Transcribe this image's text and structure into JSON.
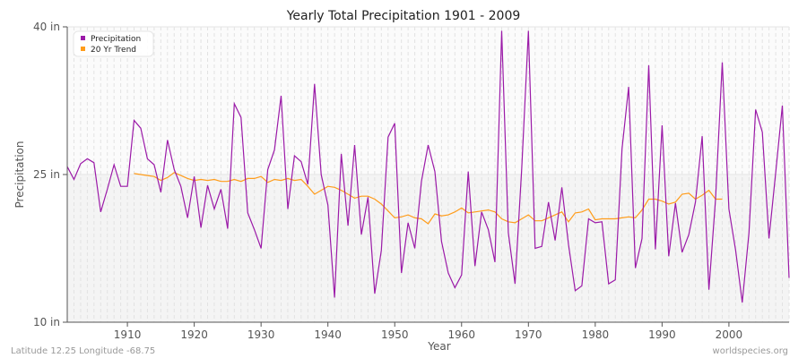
{
  "chart_data": {
    "type": "line",
    "title": "Yearly Total Precipitation 1901 - 2009",
    "xlabel": "Year",
    "ylabel": "Precipitation",
    "xlim": [
      1901,
      2009
    ],
    "ylim": [
      10,
      40
    ],
    "y_ticks": [
      {
        "value": 10,
        "label": "10 in"
      },
      {
        "value": 25,
        "label": "25 in"
      },
      {
        "value": 40,
        "label": "40 in"
      }
    ],
    "x_ticks": [
      1910,
      1920,
      1930,
      1940,
      1950,
      1960,
      1970,
      1980,
      1990,
      2000
    ],
    "grid": true,
    "legend_position": "top-left",
    "series": [
      {
        "name": "Precipitation",
        "color": "#9b1aa8",
        "x_start": 1901,
        "values": [
          25.8,
          24.5,
          26.1,
          26.6,
          26.2,
          21.2,
          23.5,
          26.0,
          23.8,
          23.8,
          30.5,
          29.7,
          26.6,
          26.0,
          23.2,
          28.5,
          25.5,
          23.8,
          20.6,
          24.8,
          19.6,
          23.9,
          21.5,
          23.5,
          19.5,
          32.2,
          30.8,
          21.1,
          19.4,
          17.5,
          25.5,
          27.5,
          33.0,
          21.5,
          26.9,
          26.3,
          24.0,
          34.2,
          25.0,
          21.9,
          12.5,
          27.1,
          19.8,
          28.0,
          18.9,
          22.7,
          12.9,
          17.3,
          28.8,
          30.2,
          15.0,
          20.1,
          17.5,
          24.3,
          28.0,
          25.3,
          18.2,
          15.0,
          13.5,
          14.8,
          25.3,
          15.7,
          21.2,
          19.4,
          16.1,
          39.6,
          19.1,
          13.9,
          25.7,
          39.6,
          17.5,
          17.7,
          22.2,
          18.3,
          23.7,
          17.9,
          13.2,
          13.7,
          20.5,
          20.1,
          20.2,
          13.9,
          14.3,
          27.6,
          33.9,
          15.5,
          18.5,
          36.1,
          17.4,
          30.0,
          16.7,
          22.1,
          17.1,
          18.9,
          22.2,
          28.9,
          13.3,
          22.5,
          36.4,
          21.5,
          17.3,
          12.0,
          19.1,
          31.6,
          29.3,
          18.5,
          25.2,
          32.0,
          14.5
        ]
      },
      {
        "name": "20 Yr Trend",
        "color": "#ff9c1a",
        "x_start": 1911,
        "values": [
          25.1,
          25.0,
          24.9,
          24.8,
          24.4,
          24.7,
          25.2,
          24.9,
          24.6,
          24.4,
          24.5,
          24.4,
          24.5,
          24.3,
          24.3,
          24.5,
          24.3,
          24.6,
          24.6,
          24.8,
          24.2,
          24.5,
          24.4,
          24.6,
          24.4,
          24.5,
          23.8,
          23.0,
          23.4,
          23.8,
          23.7,
          23.4,
          23.0,
          22.6,
          22.8,
          22.8,
          22.5,
          22.0,
          21.3,
          20.6,
          20.7,
          20.9,
          20.6,
          20.5,
          20.0,
          21.0,
          20.8,
          20.9,
          21.2,
          21.6,
          21.1,
          21.2,
          21.3,
          21.4,
          21.2,
          20.5,
          20.2,
          20.1,
          20.5,
          20.9,
          20.3,
          20.3,
          20.6,
          20.9,
          21.2,
          20.2,
          21.1,
          21.2,
          21.5,
          20.4,
          20.5,
          20.5,
          20.5,
          20.6,
          20.7,
          20.6,
          21.4,
          22.5,
          22.5,
          22.3,
          22.0,
          22.2,
          23.0,
          23.1,
          22.5,
          22.9,
          23.4,
          22.5,
          22.5
        ]
      }
    ],
    "footer_left": "Latitude 12.25 Longitude -68.75",
    "footer_right": "worldspecies.org"
  }
}
